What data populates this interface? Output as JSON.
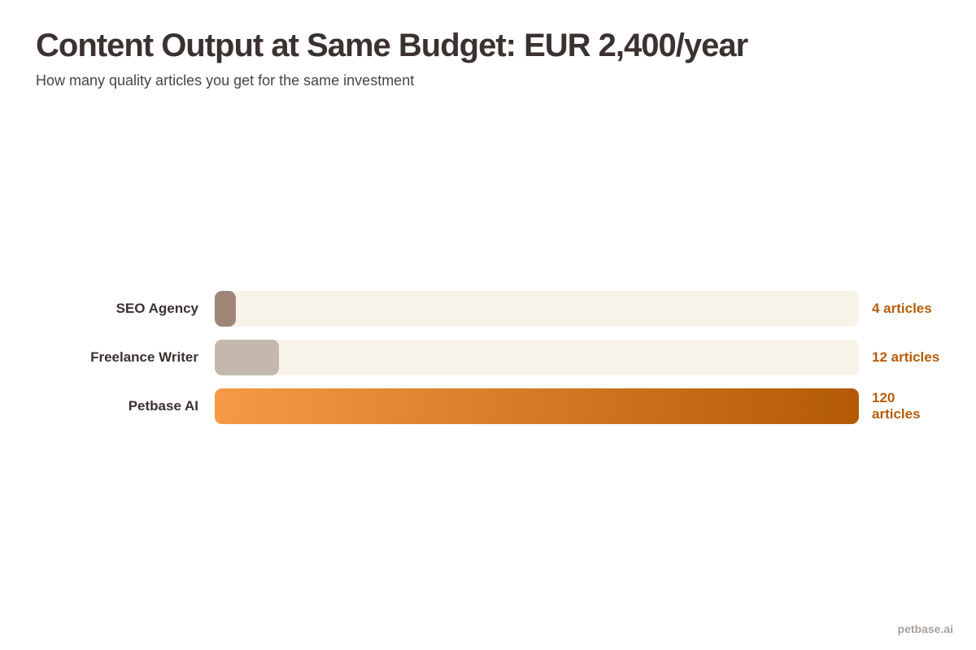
{
  "chart_data": {
    "type": "bar",
    "orientation": "horizontal",
    "title": "Content Output at Same Budget: EUR 2,400/year",
    "subtitle": "How many quality articles you get for the same investment",
    "categories": [
      "SEO Agency",
      "Freelance Writer",
      "Petbase AI"
    ],
    "values": [
      4,
      12,
      120
    ],
    "value_labels": [
      "4 articles",
      "12 articles",
      "120 articles"
    ],
    "xlim": [
      0,
      120
    ],
    "grid": false,
    "bar_colors": [
      "#a08679",
      "#c4b8ad",
      "gradient:#f59a47-#b35a05"
    ],
    "track_color": "#f8f3e9",
    "label_color": "#b55d0a"
  },
  "footer": "petbase.ai"
}
